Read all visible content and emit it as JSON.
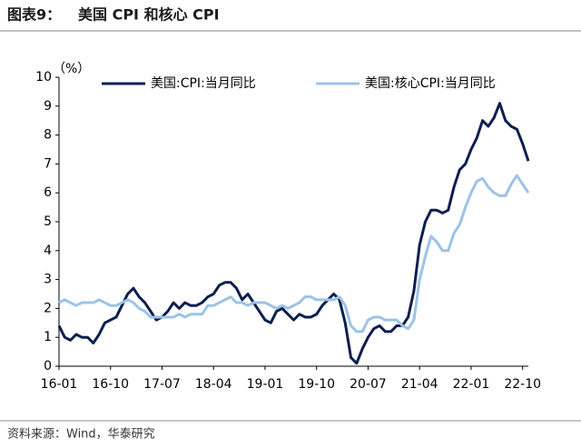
{
  "chart_data": {
    "type": "line",
    "figure_label": "图表9：",
    "title": "美国 CPI 和核心 CPI",
    "y_label": "（%）",
    "source": "资料来源：Wind，华泰研究",
    "categories": [
      "16-01",
      null,
      null,
      null,
      null,
      null,
      null,
      null,
      null,
      "16-10",
      null,
      null,
      null,
      null,
      null,
      null,
      null,
      null,
      "17-07",
      null,
      null,
      null,
      null,
      null,
      null,
      null,
      null,
      "18-04",
      null,
      null,
      null,
      null,
      null,
      null,
      null,
      null,
      "19-01",
      null,
      null,
      null,
      null,
      null,
      null,
      null,
      null,
      "19-10",
      null,
      null,
      null,
      null,
      null,
      null,
      null,
      null,
      "20-07",
      null,
      null,
      null,
      null,
      null,
      null,
      null,
      null,
      "21-04",
      null,
      null,
      null,
      null,
      null,
      null,
      null,
      null,
      "22-01",
      null,
      null,
      null,
      null,
      null,
      null,
      null,
      null,
      "22-10",
      null
    ],
    "series": [
      {
        "name": "美国:CPI:当月同比",
        "color": "#0d1f4e",
        "values": [
          1.4,
          1.0,
          0.9,
          1.1,
          1.0,
          1.0,
          0.8,
          1.1,
          1.5,
          1.6,
          1.7,
          2.1,
          2.5,
          2.7,
          2.4,
          2.2,
          1.9,
          1.6,
          1.7,
          1.9,
          2.2,
          2.0,
          2.2,
          2.1,
          2.1,
          2.2,
          2.4,
          2.5,
          2.8,
          2.9,
          2.9,
          2.7,
          2.3,
          2.5,
          2.2,
          1.9,
          1.6,
          1.5,
          1.9,
          2.0,
          1.8,
          1.6,
          1.8,
          1.7,
          1.7,
          1.8,
          2.1,
          2.3,
          2.5,
          2.3,
          1.5,
          0.3,
          0.1,
          0.6,
          1.0,
          1.3,
          1.4,
          1.2,
          1.2,
          1.4,
          1.4,
          1.7,
          2.6,
          4.2,
          5.0,
          5.4,
          5.4,
          5.3,
          5.4,
          6.2,
          6.8,
          7.0,
          7.5,
          7.9,
          8.5,
          8.3,
          8.6,
          9.1,
          8.5,
          8.3,
          8.2,
          7.7,
          7.1
        ]
      },
      {
        "name": "美国:核心CPI:当月同比",
        "color": "#9dc3e6",
        "values": [
          2.2,
          2.3,
          2.2,
          2.1,
          2.2,
          2.2,
          2.2,
          2.3,
          2.2,
          2.1,
          2.1,
          2.2,
          2.3,
          2.2,
          2.0,
          1.9,
          1.7,
          1.7,
          1.7,
          1.7,
          1.7,
          1.8,
          1.7,
          1.8,
          1.8,
          1.8,
          2.1,
          2.1,
          2.2,
          2.3,
          2.4,
          2.2,
          2.2,
          2.1,
          2.2,
          2.2,
          2.2,
          2.1,
          2.0,
          2.1,
          2.0,
          2.1,
          2.2,
          2.4,
          2.4,
          2.3,
          2.3,
          2.3,
          2.3,
          2.4,
          2.1,
          1.4,
          1.2,
          1.2,
          1.6,
          1.7,
          1.7,
          1.6,
          1.6,
          1.6,
          1.4,
          1.3,
          1.6,
          3.0,
          3.8,
          4.5,
          4.3,
          4.0,
          4.0,
          4.6,
          4.9,
          5.5,
          6.0,
          6.4,
          6.5,
          6.2,
          6.0,
          5.9,
          5.9,
          6.3,
          6.6,
          6.3,
          6.0
        ]
      }
    ],
    "ylim": [
      0,
      10
    ],
    "yticks": [
      0,
      1,
      2,
      3,
      4,
      5,
      6,
      7,
      8,
      9,
      10
    ],
    "grid": false
  }
}
